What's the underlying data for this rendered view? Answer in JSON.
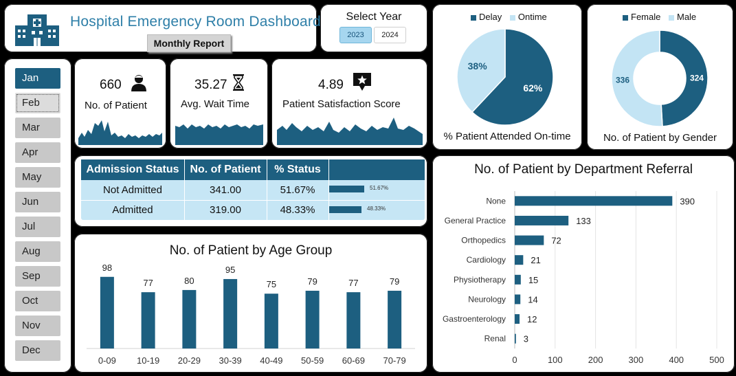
{
  "header": {
    "title": "Hospital Emergency Room Dashboard",
    "report_button": "Monthly Report",
    "logo_icon": "hospital-building-icon"
  },
  "year_selector": {
    "label": "Select Year",
    "options": [
      "2023",
      "2024"
    ],
    "selected": "2023"
  },
  "months": {
    "items": [
      "Jan",
      "Feb",
      "Mar",
      "Apr",
      "May",
      "Jun",
      "Jul",
      "Aug",
      "Sep",
      "Oct",
      "Nov",
      "Dec"
    ],
    "selected": "Jan"
  },
  "kpis": {
    "patients": {
      "value": "660",
      "label": "No. of Patient",
      "icon": "patient-person-icon"
    },
    "wait_time": {
      "value": "35.27",
      "label": "Avg. Wait Time",
      "icon": "hourglass-icon"
    },
    "satisfaction": {
      "value": "4.89",
      "label": "Patient Satisfaction Score",
      "icon": "star-review-icon"
    }
  },
  "admission": {
    "headers": [
      "Admission Status",
      "No. of Patient",
      "% Status"
    ],
    "rows": [
      {
        "status": "Not Admitted",
        "count": "341.00",
        "pct": "51.67%",
        "bar_label": "51.67%",
        "bar": 0.5167
      },
      {
        "status": "Admitted",
        "count": "319.00",
        "pct": "48.33%",
        "bar_label": "48.33%",
        "bar": 0.4833
      }
    ]
  },
  "colors": {
    "primary": "#1d5f80",
    "light": "#c3e4f4",
    "accent_title": "#2e7fa8"
  },
  "chart_data": [
    {
      "type": "bar",
      "title": "No. of Patient by Age Group",
      "categories": [
        "0-09",
        "10-19",
        "20-29",
        "30-39",
        "40-49",
        "50-59",
        "60-69",
        "70-79"
      ],
      "values": [
        98,
        77,
        80,
        95,
        75,
        79,
        77,
        79
      ],
      "ylim": [
        0,
        110
      ],
      "grid": false
    },
    {
      "type": "pie",
      "title": "% Patient Attended On-time",
      "legend": [
        "Delay",
        "Ontime"
      ],
      "labels": [
        "Delay",
        "Ontime"
      ],
      "values": [
        62,
        38
      ],
      "value_labels": [
        "62%",
        "38%"
      ],
      "legend_position": "top"
    },
    {
      "type": "pie",
      "title": "No. of Patient by Gender",
      "legend": [
        "Female",
        "Male"
      ],
      "labels": [
        "Female",
        "Male"
      ],
      "values": [
        324,
        336
      ],
      "value_labels": [
        "324",
        "336"
      ],
      "donut": true,
      "legend_position": "top"
    },
    {
      "type": "bar",
      "orientation": "horizontal",
      "title": "No. of Patient by Department Referral",
      "categories": [
        "None",
        "General Practice",
        "Orthopedics",
        "Cardiology",
        "Physiotherapy",
        "Neurology",
        "Gastroenterology",
        "Renal"
      ],
      "values": [
        390,
        133,
        72,
        21,
        15,
        14,
        12,
        3
      ],
      "xlim": [
        0,
        500
      ],
      "xticks": [
        0,
        100,
        200,
        300,
        400,
        500
      ],
      "grid": true
    }
  ]
}
